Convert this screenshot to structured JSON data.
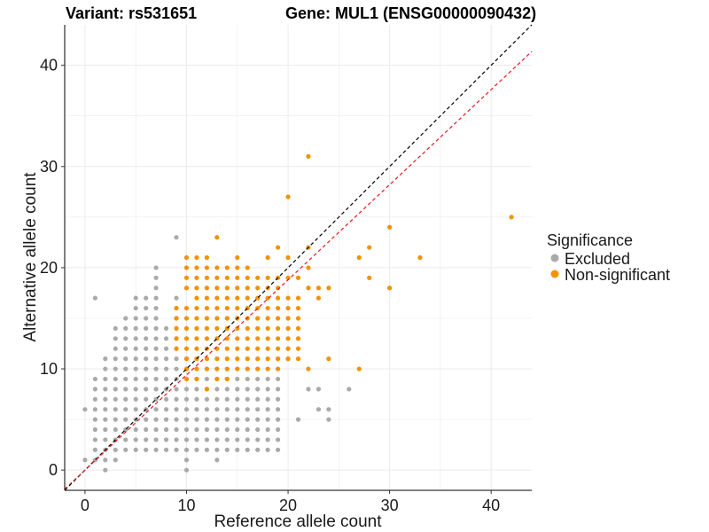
{
  "chart_data": {
    "type": "scatter",
    "title_left": "Variant: rs531651",
    "title_right": "Gene: MUL1 (ENSG00000090432)",
    "xlabel": "Reference allele count",
    "ylabel": "Alternative allele count",
    "xlim": [
      -2,
      44
    ],
    "ylim": [
      -2,
      44
    ],
    "x_ticks": [
      0,
      10,
      20,
      30,
      40
    ],
    "y_ticks": [
      0,
      10,
      20,
      30,
      40
    ],
    "grid": true,
    "legend": {
      "title": "Significance",
      "position": "right",
      "entries": [
        {
          "label": "Excluded",
          "color": "#aaaaaa"
        },
        {
          "label": "Non-significant",
          "color": "#f39200"
        }
      ]
    },
    "lines": [
      {
        "kind": "identity",
        "slope": 1,
        "intercept": 0,
        "color": "#000000",
        "dash": "dashed"
      },
      {
        "kind": "fit",
        "slope": 0.94,
        "intercept": 0,
        "color": "#e41a1c",
        "dash": "dashed"
      }
    ],
    "series": [
      {
        "name": "Excluded",
        "color": "#aaaaaa",
        "rects": [
          {
            "x": [
              4,
              8
            ],
            "y": [
              2,
              14
            ]
          },
          {
            "x": [
              5,
              7
            ],
            "y": [
              15,
              17
            ]
          },
          {
            "x": [
              9,
              19
            ],
            "y": [
              2,
              10
            ]
          },
          {
            "x": [
              1,
              3
            ],
            "y": [
              1,
              9
            ]
          },
          {
            "x": [
              3,
              3
            ],
            "y": [
              2,
              14
            ]
          }
        ],
        "points": [
          [
            0,
            1
          ],
          [
            0,
            6
          ],
          [
            1,
            3
          ],
          [
            1,
            5
          ],
          [
            1,
            6
          ],
          [
            1,
            17
          ],
          [
            2,
            0
          ],
          [
            2,
            10
          ],
          [
            2,
            11
          ],
          [
            3,
            1
          ],
          [
            3,
            13
          ],
          [
            4,
            15
          ],
          [
            7,
            18
          ],
          [
            7,
            19
          ],
          [
            7,
            20
          ],
          [
            9,
            23
          ],
          [
            9,
            17
          ],
          [
            9,
            16
          ],
          [
            9,
            15
          ],
          [
            9,
            13
          ],
          [
            9,
            12
          ],
          [
            9,
            11
          ],
          [
            10,
            0
          ],
          [
            10,
            1
          ],
          [
            10,
            11
          ],
          [
            13,
            1
          ],
          [
            16,
            3
          ],
          [
            18,
            3
          ],
          [
            19,
            4
          ],
          [
            19,
            11
          ],
          [
            20,
            11
          ],
          [
            21,
            5
          ],
          [
            22,
            8
          ],
          [
            23,
            8
          ],
          [
            23,
            6
          ],
          [
            24,
            5
          ],
          [
            24,
            6
          ],
          [
            26,
            8
          ],
          [
            20,
            12
          ],
          [
            21,
            13
          ],
          [
            19,
            10
          ]
        ]
      },
      {
        "name": "Non-significant",
        "color": "#f39200",
        "rects": [
          {
            "x": [
              10,
              19
            ],
            "y": [
              10,
              16
            ]
          },
          {
            "x": [
              11,
              18
            ],
            "y": [
              17,
              19
            ]
          },
          {
            "x": [
              10,
              12
            ],
            "y": [
              18,
              21
            ]
          },
          {
            "x": [
              20,
              21
            ],
            "y": [
              11,
              16
            ]
          }
        ],
        "points": [
          [
            9,
            12
          ],
          [
            9,
            13
          ],
          [
            9,
            14
          ],
          [
            9,
            15
          ],
          [
            9,
            16
          ],
          [
            10,
            9
          ],
          [
            11,
            9
          ],
          [
            12,
            8
          ],
          [
            13,
            9
          ],
          [
            14,
            9
          ],
          [
            11,
            20
          ],
          [
            12,
            20
          ],
          [
            13,
            20
          ],
          [
            14,
            20
          ],
          [
            15,
            20
          ],
          [
            16,
            20
          ],
          [
            13,
            23
          ],
          [
            15,
            21
          ],
          [
            18,
            21
          ],
          [
            19,
            22
          ],
          [
            17,
            18
          ],
          [
            18,
            18
          ],
          [
            19,
            18
          ],
          [
            19,
            17
          ],
          [
            19,
            19
          ],
          [
            20,
            17
          ],
          [
            21,
            17
          ],
          [
            23,
            17
          ],
          [
            22,
            10
          ],
          [
            22,
            22
          ],
          [
            22,
            31
          ],
          [
            20,
            27
          ],
          [
            23,
            18
          ],
          [
            24,
            18
          ],
          [
            24,
            11
          ],
          [
            27,
            10
          ],
          [
            27,
            21
          ],
          [
            28,
            19
          ],
          [
            28,
            22
          ],
          [
            30,
            24
          ],
          [
            30,
            18
          ],
          [
            33,
            21
          ],
          [
            42,
            25
          ],
          [
            22,
            20
          ],
          [
            21,
            19
          ],
          [
            22,
            18
          ],
          [
            20,
            19
          ],
          [
            20,
            21
          ]
        ]
      }
    ]
  }
}
